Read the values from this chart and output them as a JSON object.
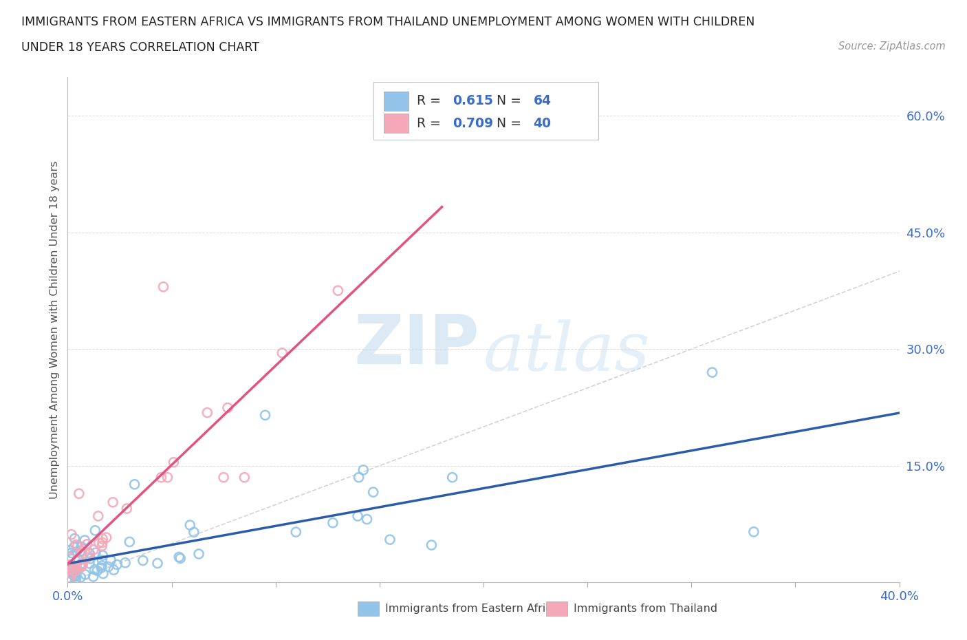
{
  "title_line1": "IMMIGRANTS FROM EASTERN AFRICA VS IMMIGRANTS FROM THAILAND UNEMPLOYMENT AMONG WOMEN WITH CHILDREN",
  "title_line2": "UNDER 18 YEARS CORRELATION CHART",
  "source": "Source: ZipAtlas.com",
  "ylabel": "Unemployment Among Women with Children Under 18 years",
  "xlim": [
    0.0,
    0.4
  ],
  "ylim": [
    0.0,
    0.65
  ],
  "r_eastern": 0.615,
  "n_eastern": 64,
  "r_thailand": 0.709,
  "n_thailand": 40,
  "color_eastern": "#91c4e8",
  "color_thailand": "#f4a8b8",
  "line_color_eastern": "#2a5caa",
  "line_color_thailand": "#e05580",
  "watermark_zip": "ZIP",
  "watermark_atlas": "atlas",
  "seed_eastern": 42,
  "seed_thailand": 77
}
